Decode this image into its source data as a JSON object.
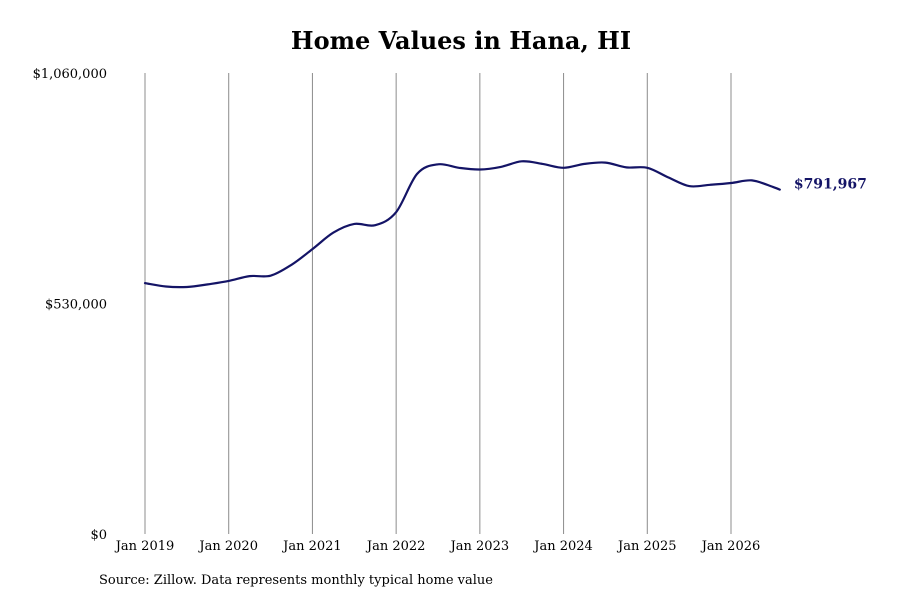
{
  "chart_data": {
    "type": "line",
    "title": "Home Values in Hana, HI",
    "xlabel": "",
    "ylabel": "",
    "ylim": [
      0,
      1060000
    ],
    "y_ticks": [
      "$0",
      "$530,000",
      "$1,060,000"
    ],
    "y_tick_values": [
      0,
      530000,
      1060000
    ],
    "x_ticks": [
      "Jan 2019",
      "Jan 2020",
      "Jan 2021",
      "Jan 2022",
      "Jan 2023",
      "Jan 2024",
      "Jan 2025",
      "Jan 2026"
    ],
    "x_tick_values": [
      "2019-01",
      "2020-01",
      "2021-01",
      "2022-01",
      "2023-01",
      "2024-01",
      "2025-01",
      "2026-01"
    ],
    "grid": "vertical",
    "series_color": "#141466",
    "series": [
      {
        "x": [
          "2019-01",
          "2019-04",
          "2019-07",
          "2019-10",
          "2020-01",
          "2020-04",
          "2020-07",
          "2020-10",
          "2021-01",
          "2021-04",
          "2021-07",
          "2021-10",
          "2022-01",
          "2022-04",
          "2022-07",
          "2022-10",
          "2023-01",
          "2023-04",
          "2023-07",
          "2023-10",
          "2024-01",
          "2024-04",
          "2024-07",
          "2024-10",
          "2025-01",
          "2025-04",
          "2025-07",
          "2025-10",
          "2026-01",
          "2026-04",
          "2026-07",
          "2026-08"
        ],
        "values": [
          577000,
          569000,
          568000,
          574000,
          582000,
          593000,
          594000,
          619000,
          655000,
          693000,
          713000,
          710000,
          740000,
          828000,
          850000,
          842000,
          838000,
          844000,
          857000,
          851000,
          842000,
          851000,
          854000,
          843000,
          842000,
          820000,
          800000,
          803000,
          807000,
          813000,
          798000,
          791967
        ]
      }
    ],
    "end_label": "$791,967"
  },
  "source": "Source: Zillow. Data represents monthly typical home value"
}
